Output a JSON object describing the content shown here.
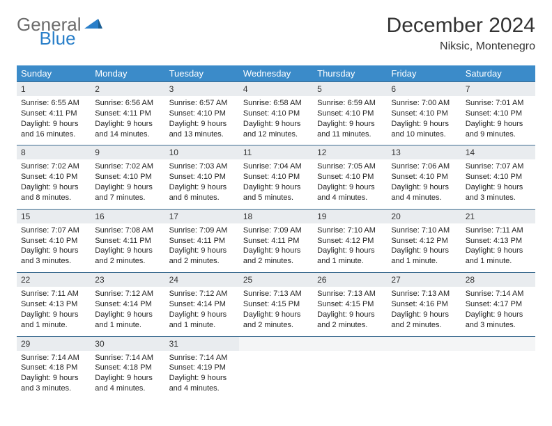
{
  "logo": {
    "text1": "General",
    "text2": "Blue"
  },
  "title": "December 2024",
  "location": "Niksic, Montenegro",
  "colors": {
    "headerBg": "#3b8bc9",
    "dayNumBg": "#e9ecef",
    "borderTop": "#3b6b8f",
    "logoGray": "#6b6b6b",
    "logoBlue": "#2a7fc9"
  },
  "weekdays": [
    "Sunday",
    "Monday",
    "Tuesday",
    "Wednesday",
    "Thursday",
    "Friday",
    "Saturday"
  ],
  "weeks": [
    [
      {
        "n": "1",
        "sr": "6:55 AM",
        "ss": "4:11 PM",
        "dl": "9 hours and 16 minutes."
      },
      {
        "n": "2",
        "sr": "6:56 AM",
        "ss": "4:11 PM",
        "dl": "9 hours and 14 minutes."
      },
      {
        "n": "3",
        "sr": "6:57 AM",
        "ss": "4:10 PM",
        "dl": "9 hours and 13 minutes."
      },
      {
        "n": "4",
        "sr": "6:58 AM",
        "ss": "4:10 PM",
        "dl": "9 hours and 12 minutes."
      },
      {
        "n": "5",
        "sr": "6:59 AM",
        "ss": "4:10 PM",
        "dl": "9 hours and 11 minutes."
      },
      {
        "n": "6",
        "sr": "7:00 AM",
        "ss": "4:10 PM",
        "dl": "9 hours and 10 minutes."
      },
      {
        "n": "7",
        "sr": "7:01 AM",
        "ss": "4:10 PM",
        "dl": "9 hours and 9 minutes."
      }
    ],
    [
      {
        "n": "8",
        "sr": "7:02 AM",
        "ss": "4:10 PM",
        "dl": "9 hours and 8 minutes."
      },
      {
        "n": "9",
        "sr": "7:02 AM",
        "ss": "4:10 PM",
        "dl": "9 hours and 7 minutes."
      },
      {
        "n": "10",
        "sr": "7:03 AM",
        "ss": "4:10 PM",
        "dl": "9 hours and 6 minutes."
      },
      {
        "n": "11",
        "sr": "7:04 AM",
        "ss": "4:10 PM",
        "dl": "9 hours and 5 minutes."
      },
      {
        "n": "12",
        "sr": "7:05 AM",
        "ss": "4:10 PM",
        "dl": "9 hours and 4 minutes."
      },
      {
        "n": "13",
        "sr": "7:06 AM",
        "ss": "4:10 PM",
        "dl": "9 hours and 4 minutes."
      },
      {
        "n": "14",
        "sr": "7:07 AM",
        "ss": "4:10 PM",
        "dl": "9 hours and 3 minutes."
      }
    ],
    [
      {
        "n": "15",
        "sr": "7:07 AM",
        "ss": "4:10 PM",
        "dl": "9 hours and 3 minutes."
      },
      {
        "n": "16",
        "sr": "7:08 AM",
        "ss": "4:11 PM",
        "dl": "9 hours and 2 minutes."
      },
      {
        "n": "17",
        "sr": "7:09 AM",
        "ss": "4:11 PM",
        "dl": "9 hours and 2 minutes."
      },
      {
        "n": "18",
        "sr": "7:09 AM",
        "ss": "4:11 PM",
        "dl": "9 hours and 2 minutes."
      },
      {
        "n": "19",
        "sr": "7:10 AM",
        "ss": "4:12 PM",
        "dl": "9 hours and 1 minute."
      },
      {
        "n": "20",
        "sr": "7:10 AM",
        "ss": "4:12 PM",
        "dl": "9 hours and 1 minute."
      },
      {
        "n": "21",
        "sr": "7:11 AM",
        "ss": "4:13 PM",
        "dl": "9 hours and 1 minute."
      }
    ],
    [
      {
        "n": "22",
        "sr": "7:11 AM",
        "ss": "4:13 PM",
        "dl": "9 hours and 1 minute."
      },
      {
        "n": "23",
        "sr": "7:12 AM",
        "ss": "4:14 PM",
        "dl": "9 hours and 1 minute."
      },
      {
        "n": "24",
        "sr": "7:12 AM",
        "ss": "4:14 PM",
        "dl": "9 hours and 1 minute."
      },
      {
        "n": "25",
        "sr": "7:13 AM",
        "ss": "4:15 PM",
        "dl": "9 hours and 2 minutes."
      },
      {
        "n": "26",
        "sr": "7:13 AM",
        "ss": "4:15 PM",
        "dl": "9 hours and 2 minutes."
      },
      {
        "n": "27",
        "sr": "7:13 AM",
        "ss": "4:16 PM",
        "dl": "9 hours and 2 minutes."
      },
      {
        "n": "28",
        "sr": "7:14 AM",
        "ss": "4:17 PM",
        "dl": "9 hours and 3 minutes."
      }
    ],
    [
      {
        "n": "29",
        "sr": "7:14 AM",
        "ss": "4:18 PM",
        "dl": "9 hours and 3 minutes."
      },
      {
        "n": "30",
        "sr": "7:14 AM",
        "ss": "4:18 PM",
        "dl": "9 hours and 4 minutes."
      },
      {
        "n": "31",
        "sr": "7:14 AM",
        "ss": "4:19 PM",
        "dl": "9 hours and 4 minutes."
      },
      null,
      null,
      null,
      null
    ]
  ]
}
